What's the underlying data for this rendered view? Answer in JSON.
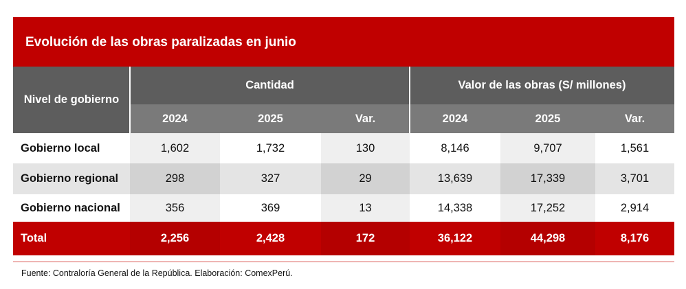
{
  "title": "Evolución de las obras paralizadas en junio",
  "colors": {
    "accent": "#c00000",
    "header": "#5d5d5d",
    "subheader": "#7a7a7a"
  },
  "chart_data": {
    "type": "table",
    "title": "Evolución de las obras paralizadas en junio",
    "row_header": "Nivel de gobierno",
    "groups": [
      {
        "label": "Cantidad",
        "columns": [
          "2024",
          "2025",
          "Var."
        ]
      },
      {
        "label": "Valor de las obras (S/ millones)",
        "columns": [
          "2024",
          "2025",
          "Var."
        ]
      }
    ],
    "rows": [
      {
        "label": "Gobierno local",
        "values": [
          "1,602",
          "1,732",
          "130",
          "8,146",
          "9,707",
          "1,561"
        ]
      },
      {
        "label": "Gobierno regional",
        "values": [
          "298",
          "327",
          "29",
          "13,639",
          "17,339",
          "3,701"
        ]
      },
      {
        "label": "Gobierno nacional",
        "values": [
          "356",
          "369",
          "13",
          "14,338",
          "17,252",
          "2,914"
        ]
      }
    ],
    "total": {
      "label": "Total",
      "values": [
        "2,256",
        "2,428",
        "172",
        "36,122",
        "44,298",
        "8,176"
      ]
    }
  },
  "source": "Fuente: Contraloría General de la República. Elaboración: ComexPerú."
}
